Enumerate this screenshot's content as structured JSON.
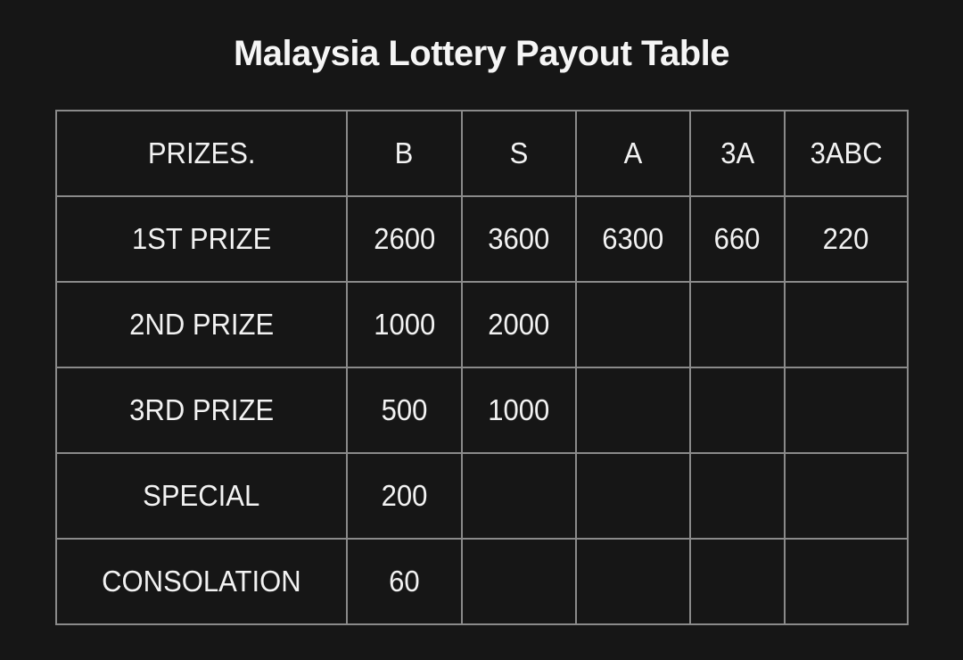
{
  "title": "Malaysia Lottery Payout Table",
  "colors": {
    "background": "#161616",
    "table_border": "#8a8a8a",
    "text": "#f2f2f2"
  },
  "chart_data": {
    "type": "table",
    "title": "Malaysia Lottery Payout Table",
    "columns": [
      "PRIZES.",
      "B",
      "S",
      "A",
      "3A",
      "3ABC"
    ],
    "rows": [
      [
        "1ST PRIZE",
        "2600",
        "3600",
        "6300",
        "660",
        "220"
      ],
      [
        "2ND PRIZE",
        "1000",
        "2000",
        "",
        "",
        ""
      ],
      [
        "3RD PRIZE",
        "500",
        "1000",
        "",
        "",
        ""
      ],
      [
        "SPECIAL",
        "200",
        "",
        "",
        "",
        ""
      ],
      [
        "CONSOLATION",
        "60",
        "",
        "",
        "",
        ""
      ]
    ],
    "layout": {
      "grid": "full-borders",
      "header_row": true,
      "cell_alignment": "center",
      "theme": "dark"
    }
  }
}
